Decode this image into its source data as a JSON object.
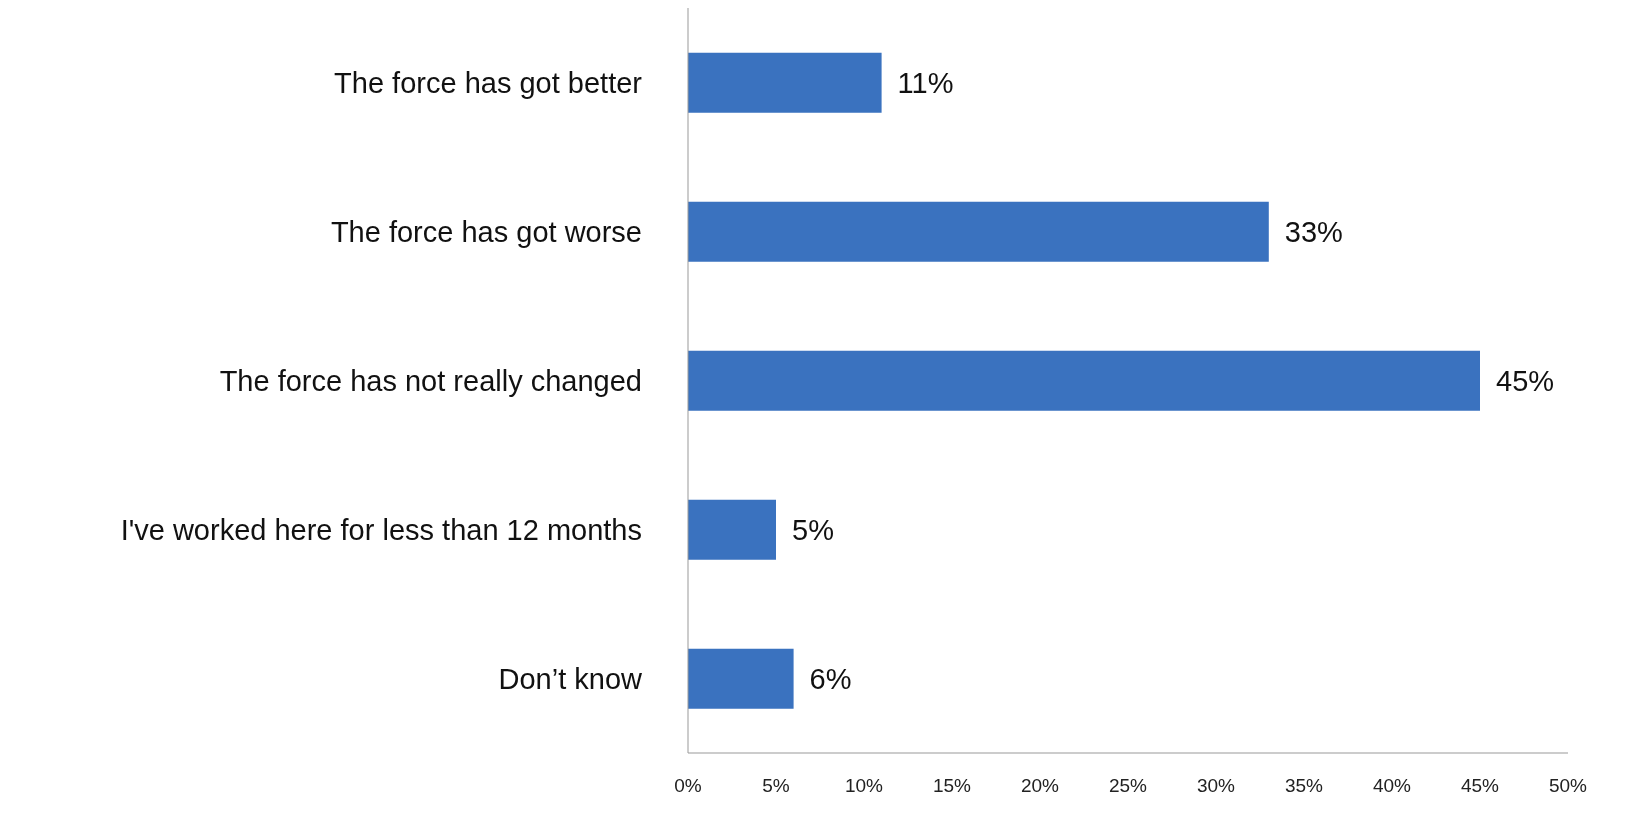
{
  "chart_data": {
    "type": "bar",
    "orientation": "horizontal",
    "categories": [
      "The force has got better",
      "The force has got worse",
      "The force has not really changed",
      "I've worked here for less than 12 months",
      "Don’t know"
    ],
    "values": [
      11,
      33,
      45,
      5,
      6
    ],
    "value_labels": [
      "11%",
      "33%",
      "45%",
      "5%",
      "6%"
    ],
    "color": "#3a72bf",
    "xlim": [
      0,
      50
    ],
    "xticks": [
      {
        "value": 0,
        "label": "0%"
      },
      {
        "value": 5,
        "label": "5%"
      },
      {
        "value": 10,
        "label": "10%"
      },
      {
        "value": 15,
        "label": "15%"
      },
      {
        "value": 20,
        "label": "20%"
      },
      {
        "value": 25,
        "label": "25%"
      },
      {
        "value": 30,
        "label": "30%"
      },
      {
        "value": 35,
        "label": "35%"
      },
      {
        "value": 40,
        "label": "40%"
      },
      {
        "value": 45,
        "label": "45%"
      },
      {
        "value": 50,
        "label": "50%"
      }
    ]
  }
}
